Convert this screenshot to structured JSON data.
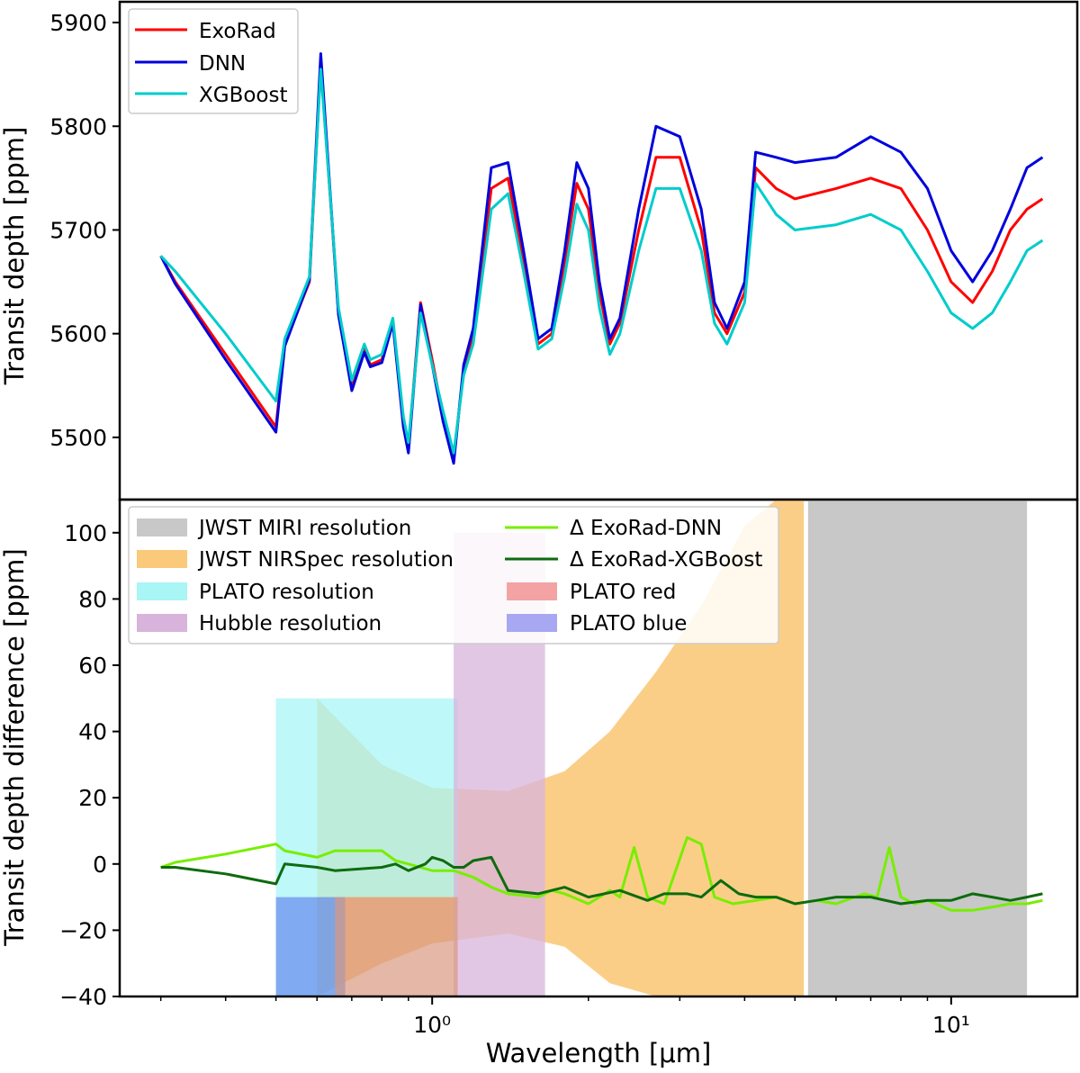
{
  "figure": {
    "xlabel": "Wavelength [μm]"
  },
  "chart_data": [
    {
      "type": "line",
      "panel": "top",
      "xlabel": "",
      "ylabel": "Transit depth [ppm]",
      "xscale": "log",
      "xlim": [
        0.25,
        17.5
      ],
      "ylim": [
        5440,
        5920
      ],
      "yticks": [
        5500,
        5600,
        5700,
        5800,
        5900
      ],
      "legend": {
        "placement": "top-left",
        "entries": [
          "ExoRad",
          "DNN",
          "XGBoost"
        ]
      },
      "series": [
        {
          "name": "ExoRad",
          "color": "#ff0000",
          "x": [
            0.3,
            0.32,
            0.4,
            0.5,
            0.52,
            0.58,
            0.61,
            0.66,
            0.7,
            0.74,
            0.76,
            0.8,
            0.84,
            0.88,
            0.9,
            0.95,
            1.0,
            1.05,
            1.1,
            1.15,
            1.2,
            1.3,
            1.4,
            1.5,
            1.6,
            1.7,
            1.8,
            1.9,
            2.0,
            2.1,
            2.2,
            2.3,
            2.5,
            2.7,
            3.0,
            3.3,
            3.5,
            3.7,
            4.0,
            4.2,
            4.6,
            5.0,
            6.0,
            7.0,
            8.0,
            9.0,
            10.0,
            11.0,
            12.0,
            13.0,
            14.0,
            15.0
          ],
          "y": [
            5675,
            5650,
            5580,
            5510,
            5590,
            5650,
            5860,
            5620,
            5548,
            5585,
            5570,
            5575,
            5612,
            5515,
            5490,
            5630,
            5575,
            5520,
            5480,
            5565,
            5600,
            5740,
            5750,
            5670,
            5590,
            5600,
            5670,
            5745,
            5720,
            5640,
            5590,
            5610,
            5700,
            5770,
            5770,
            5700,
            5620,
            5600,
            5640,
            5760,
            5740,
            5730,
            5740,
            5750,
            5740,
            5700,
            5650,
            5630,
            5660,
            5700,
            5720,
            5730
          ]
        },
        {
          "name": "DNN",
          "color": "#0000dd",
          "x": [
            0.3,
            0.32,
            0.4,
            0.5,
            0.52,
            0.58,
            0.61,
            0.66,
            0.7,
            0.74,
            0.76,
            0.8,
            0.84,
            0.88,
            0.9,
            0.95,
            1.0,
            1.05,
            1.1,
            1.15,
            1.2,
            1.3,
            1.4,
            1.5,
            1.6,
            1.7,
            1.8,
            1.9,
            2.0,
            2.1,
            2.2,
            2.3,
            2.5,
            2.7,
            3.0,
            3.3,
            3.5,
            3.7,
            4.0,
            4.2,
            4.6,
            5.0,
            6.0,
            7.0,
            8.0,
            9.0,
            10.0,
            11.0,
            12.0,
            13.0,
            14.0,
            15.0
          ],
          "y": [
            5675,
            5648,
            5575,
            5505,
            5588,
            5652,
            5870,
            5618,
            5545,
            5582,
            5568,
            5572,
            5610,
            5510,
            5485,
            5628,
            5570,
            5515,
            5475,
            5570,
            5605,
            5760,
            5765,
            5680,
            5595,
            5605,
            5680,
            5765,
            5740,
            5650,
            5595,
            5615,
            5720,
            5800,
            5790,
            5720,
            5630,
            5605,
            5650,
            5775,
            5770,
            5765,
            5770,
            5790,
            5775,
            5740,
            5680,
            5650,
            5680,
            5720,
            5760,
            5770
          ]
        },
        {
          "name": "XGBoost",
          "color": "#00cccc",
          "x": [
            0.3,
            0.32,
            0.4,
            0.5,
            0.52,
            0.58,
            0.61,
            0.66,
            0.7,
            0.74,
            0.76,
            0.8,
            0.84,
            0.88,
            0.9,
            0.95,
            1.0,
            1.05,
            1.1,
            1.15,
            1.2,
            1.3,
            1.4,
            1.5,
            1.6,
            1.7,
            1.8,
            1.9,
            2.0,
            2.1,
            2.2,
            2.3,
            2.5,
            2.7,
            3.0,
            3.3,
            3.5,
            3.7,
            4.0,
            4.2,
            4.6,
            5.0,
            6.0,
            7.0,
            8.0,
            9.0,
            10.0,
            11.0,
            12.0,
            13.0,
            14.0,
            15.0
          ],
          "y": [
            5675,
            5660,
            5600,
            5535,
            5595,
            5655,
            5855,
            5625,
            5555,
            5590,
            5575,
            5580,
            5615,
            5520,
            5495,
            5620,
            5570,
            5525,
            5485,
            5560,
            5590,
            5720,
            5735,
            5660,
            5585,
            5595,
            5655,
            5725,
            5700,
            5625,
            5580,
            5600,
            5680,
            5740,
            5740,
            5680,
            5610,
            5590,
            5630,
            5745,
            5715,
            5700,
            5705,
            5715,
            5700,
            5660,
            5620,
            5605,
            5620,
            5650,
            5680,
            5690
          ]
        }
      ]
    },
    {
      "type": "line",
      "panel": "bottom",
      "xlabel": "Wavelength [μm]",
      "ylabel": "Transit depth difference [ppm]",
      "xscale": "log",
      "xlim": [
        0.25,
        17.5
      ],
      "ylim": [
        -40,
        110
      ],
      "yticks": [
        -40,
        -20,
        0,
        20,
        40,
        60,
        80,
        100
      ],
      "xticks": [
        {
          "value": 1,
          "label": "10⁰"
        },
        {
          "value": 10,
          "label": "10¹"
        }
      ],
      "legend": {
        "placement": "top-left",
        "entries": [
          "JWST MIRI resolution",
          "JWST NIRSpec resolution",
          "PLATO resolution",
          "Hubble resolution",
          "Δ ExoRad-DNN",
          "Δ ExoRad-XGBoost",
          "PLATO red",
          "PLATO blue"
        ]
      },
      "bands": [
        {
          "name": "JWST MIRI resolution",
          "color": "#c8c8c8",
          "x": [
            5.3,
            14.0
          ],
          "y": [
            -40,
            110
          ]
        },
        {
          "name": "PLATO resolution",
          "color": "#aaf5f5",
          "x": [
            0.5,
            1.12
          ],
          "y": [
            -10,
            50
          ]
        },
        {
          "name": "Hubble resolution",
          "color": "#d8b4dc",
          "x": [
            1.1,
            1.65
          ],
          "y": [
            -40,
            100
          ]
        },
        {
          "name": "PLATO blue",
          "color": "#6a9cf0",
          "x": [
            0.5,
            0.68
          ],
          "y": [
            -40,
            -10
          ]
        },
        {
          "name": "PLATO red",
          "color": "#d99880",
          "x": [
            0.65,
            1.12
          ],
          "y": [
            -40,
            -10
          ]
        }
      ],
      "nirspec": {
        "name": "JWST NIRSpec resolution",
        "color": "#fbc97a",
        "x": [
          0.6,
          0.8,
          1.0,
          1.4,
          1.8,
          2.2,
          2.7,
          3.3,
          4.0,
          4.6,
          5.2
        ],
        "upper": [
          50,
          30,
          23,
          22,
          28,
          40,
          58,
          78,
          102,
          110,
          110
        ],
        "lower": [
          -40,
          -30,
          -24,
          -21,
          -25,
          -36,
          -40,
          -40,
          -40,
          -40,
          -40
        ],
        "xmin": 0.6,
        "xmax": 5.2
      },
      "series": [
        {
          "name": "Δ ExoRad-DNN",
          "color": "#77ee00",
          "x": [
            0.3,
            0.32,
            0.4,
            0.5,
            0.52,
            0.6,
            0.65,
            0.8,
            0.85,
            0.9,
            1.0,
            1.1,
            1.2,
            1.3,
            1.4,
            1.6,
            1.7,
            1.8,
            2.0,
            2.1,
            2.2,
            2.3,
            2.45,
            2.6,
            2.8,
            3.1,
            3.3,
            3.5,
            3.8,
            4.2,
            4.6,
            5.0,
            5.5,
            6.0,
            6.8,
            7.2,
            7.6,
            8.0,
            8.5,
            9.0,
            10.0,
            11.0,
            12.0,
            13.0,
            14.0,
            15.0
          ],
          "y": [
            -1,
            0.5,
            3,
            6,
            4,
            2,
            4,
            4,
            1,
            0,
            -2,
            -2,
            -4,
            -7,
            -9,
            -10,
            -8,
            -9,
            -12,
            -10,
            -8,
            -10,
            5,
            -10,
            -12,
            8,
            6,
            -10,
            -12,
            -11,
            -10,
            -12,
            -11,
            -12,
            -9,
            -10,
            5,
            -10,
            -12,
            -11,
            -14,
            -14,
            -13,
            -12,
            -12,
            -11
          ]
        },
        {
          "name": "Δ ExoRad-XGBoost",
          "color": "#0e6b0e",
          "x": [
            0.3,
            0.32,
            0.4,
            0.5,
            0.52,
            0.6,
            0.65,
            0.8,
            0.85,
            0.9,
            0.97,
            1.0,
            1.05,
            1.1,
            1.15,
            1.2,
            1.3,
            1.4,
            1.6,
            1.8,
            2.0,
            2.3,
            2.6,
            2.8,
            3.1,
            3.3,
            3.6,
            3.9,
            4.2,
            4.6,
            5.0,
            5.5,
            6.0,
            7.0,
            8.0,
            9.0,
            10.0,
            11.0,
            12.0,
            13.0,
            14.0,
            15.0
          ],
          "y": [
            -1,
            -1,
            -3,
            -6,
            0,
            -1,
            -2,
            -1,
            0,
            -2,
            0,
            2,
            1,
            -1,
            -1,
            1,
            2,
            -8,
            -9,
            -7,
            -10,
            -8,
            -11,
            -9,
            -9,
            -10,
            -5,
            -9,
            -10,
            -10,
            -12,
            -11,
            -10,
            -10,
            -12,
            -11,
            -11,
            -9,
            -10,
            -11,
            -10,
            -9
          ]
        }
      ]
    }
  ]
}
